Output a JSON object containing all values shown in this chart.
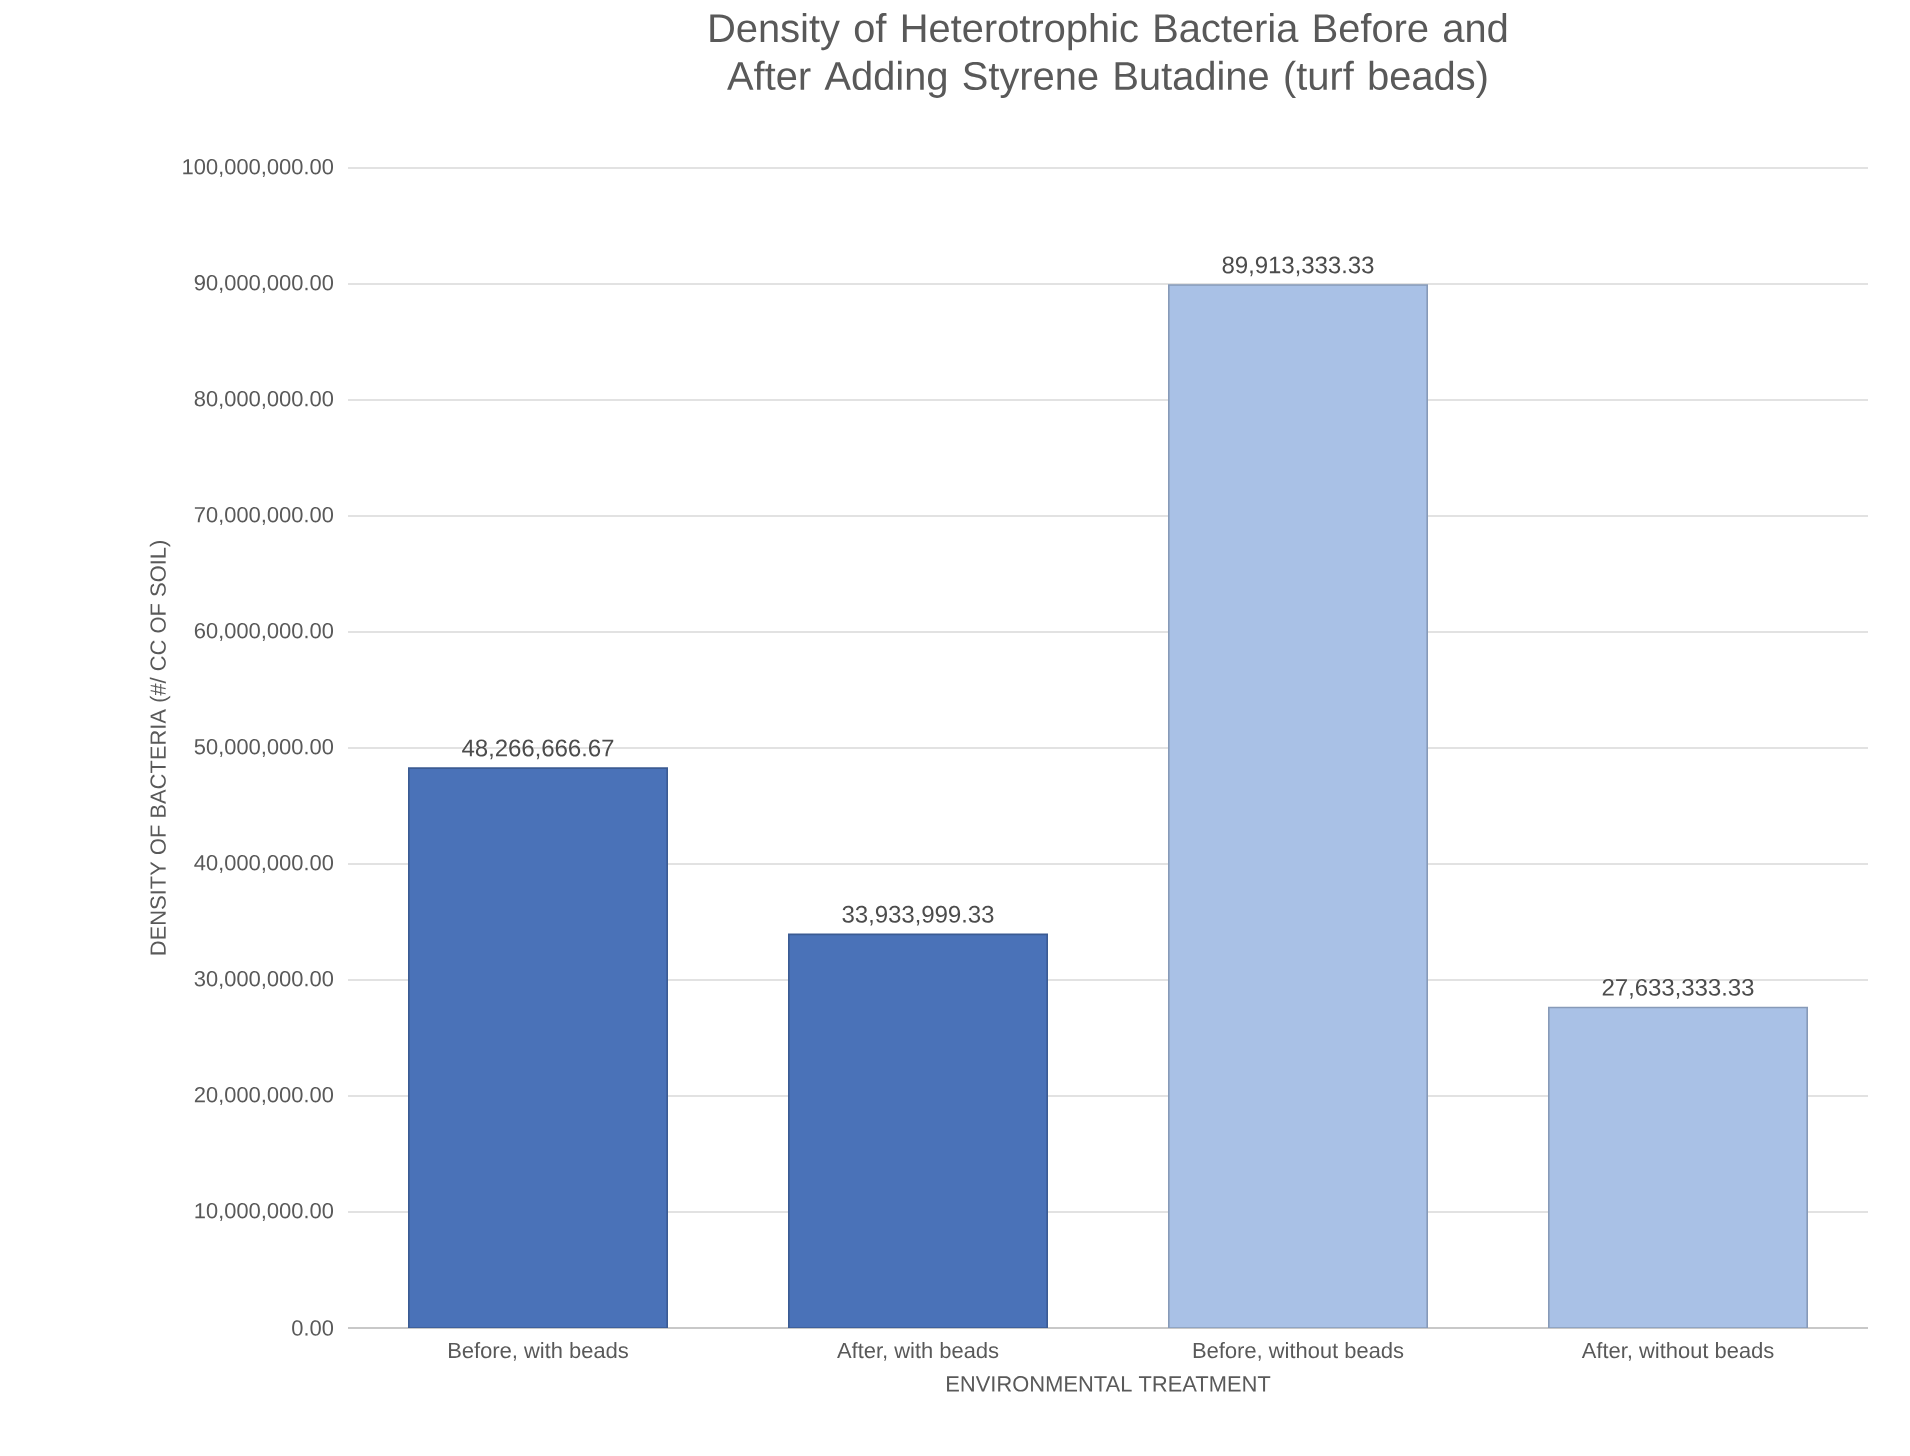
{
  "chart_data": {
    "type": "bar",
    "title": "Density of Heterotrophic Bacteria Before and After Adding Styrene Butadine (turf beads)",
    "xlabel": "ENVIRONMENTAL TREATMENT",
    "ylabel": "DENSITY OF BACTERIA (#/ CC OF SOIL)",
    "categories": [
      "Before, with beads",
      "After, with beads",
      "Before, without beads",
      "After, without beads"
    ],
    "values": [
      48266666.67,
      33933999.33,
      89913333.33,
      27633333.33
    ],
    "value_labels": [
      "48,266,666.67",
      "33,933,999.33",
      "89,913,333.33",
      "27,633,333.33"
    ],
    "colors": [
      "#4a72b8",
      "#4a72b8",
      "#a9c1e6",
      "#a9c1e6"
    ],
    "ylim": [
      0,
      100000000
    ],
    "yticks": [
      {
        "value": 0,
        "label": "0.00"
      },
      {
        "value": 10000000,
        "label": "10,000,000.00"
      },
      {
        "value": 20000000,
        "label": "20,000,000.00"
      },
      {
        "value": 30000000,
        "label": "30,000,000.00"
      },
      {
        "value": 40000000,
        "label": "40,000,000.00"
      },
      {
        "value": 50000000,
        "label": "50,000,000.00"
      },
      {
        "value": 60000000,
        "label": "60,000,000.00"
      },
      {
        "value": 70000000,
        "label": "70,000,000.00"
      },
      {
        "value": 80000000,
        "label": "80,000,000.00"
      },
      {
        "value": 90000000,
        "label": "90,000,000.00"
      },
      {
        "value": 100000000,
        "label": "100,000,000.00"
      }
    ],
    "grid": "y"
  }
}
